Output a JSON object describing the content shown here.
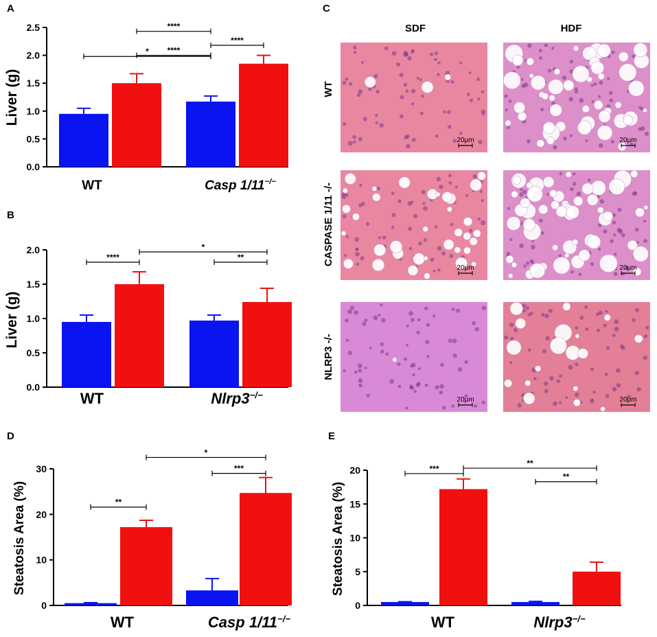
{
  "colors": {
    "sdf": "#0a14f0",
    "hdf": "#f01010",
    "tissue": "#e8829e",
    "vacuole": "#ffffff",
    "nucleus": "#7a3a8a"
  },
  "panels": {
    "A": "A",
    "B": "B",
    "C": "C",
    "D": "D",
    "E": "E"
  },
  "chart_data": [
    {
      "id": "A",
      "type": "bar",
      "ylabel": "Liver (g)",
      "ylim": [
        0,
        2.5
      ],
      "yticks": [
        "0.0",
        "0.5",
        "1.0",
        "1.5",
        "2.0",
        "2.5"
      ],
      "groups": [
        {
          "label": "WT",
          "italic": false,
          "values": [
            0.95,
            1.5
          ],
          "errors": [
            0.1,
            0.17
          ]
        },
        {
          "label_main": "Casp 1/11",
          "label_sup": "−/−",
          "italic": true,
          "values": [
            1.17,
            1.85
          ],
          "errors": [
            0.1,
            0.15
          ]
        }
      ],
      "series": [
        "SDF",
        "HDF"
      ],
      "significance": [
        {
          "from": [
            1,
            0
          ],
          "to": [
            0,
            1
          ],
          "level": 2.0,
          "label": "****"
        },
        {
          "from": [
            0,
            0
          ],
          "to": [
            1,
            0
          ],
          "level": 1.98,
          "label": "*"
        },
        {
          "from": [
            1,
            0
          ],
          "to": [
            1,
            1
          ],
          "level": 2.18,
          "label": "****"
        },
        {
          "from": [
            0,
            1
          ],
          "to": [
            1,
            0
          ],
          "level": 2.43,
          "label": "****"
        }
      ]
    },
    {
      "id": "B",
      "type": "bar",
      "ylabel": "Liver (g)",
      "ylim": [
        0,
        2.0
      ],
      "yticks": [
        "0.0",
        "0.5",
        "1.0",
        "1.5",
        "2.0"
      ],
      "groups": [
        {
          "label": "WT",
          "italic": false,
          "values": [
            0.95,
            1.5
          ],
          "errors": [
            0.1,
            0.18
          ]
        },
        {
          "label_main": "Nlrp3",
          "label_sup": "−/−",
          "italic": true,
          "values": [
            0.97,
            1.24
          ],
          "errors": [
            0.08,
            0.2
          ]
        }
      ],
      "series": [
        "SDF",
        "HDF"
      ],
      "significance": [
        {
          "from": [
            0,
            0
          ],
          "to": [
            0,
            1
          ],
          "level": 1.82,
          "label": "****"
        },
        {
          "from": [
            1,
            0
          ],
          "to": [
            1,
            1
          ],
          "level": 1.82,
          "label": "**"
        },
        {
          "from": [
            0,
            1
          ],
          "to": [
            1,
            1
          ],
          "level": 1.97,
          "label": "*"
        }
      ]
    },
    {
      "id": "D",
      "type": "bar",
      "ylabel": "Steatosis Area (%)",
      "ylim": [
        0,
        30
      ],
      "yticks": [
        "0",
        "10",
        "20",
        "30"
      ],
      "groups": [
        {
          "label": "WT",
          "italic": false,
          "values": [
            0.5,
            17.2
          ],
          "errors": [
            0.1,
            1.5
          ]
        },
        {
          "label_main": "Casp 1/11",
          "label_sup": "−/−",
          "italic": true,
          "values": [
            3.3,
            24.7
          ],
          "errors": [
            2.6,
            3.4
          ]
        }
      ],
      "series": [
        "SDF",
        "HDF"
      ],
      "significance": [
        {
          "from": [
            0,
            0
          ],
          "to": [
            0,
            1
          ],
          "level": 21.6,
          "label": "**"
        },
        {
          "from": [
            1,
            0
          ],
          "to": [
            1,
            1
          ],
          "level": 29.0,
          "label": "***"
        },
        {
          "from": [
            0,
            1
          ],
          "to": [
            1,
            1
          ],
          "level": 32.5,
          "label": "*"
        }
      ]
    },
    {
      "id": "E",
      "type": "bar",
      "ylabel": "Steatosis Area (%)",
      "ylim": [
        0,
        20
      ],
      "yticks": [
        "0",
        "5",
        "10",
        "15",
        "20"
      ],
      "groups": [
        {
          "label": "WT",
          "italic": false,
          "values": [
            0.5,
            17.2
          ],
          "errors": [
            0.05,
            1.5
          ]
        },
        {
          "label_main": "Nlrp3",
          "label_sup": "−/−",
          "italic": true,
          "values": [
            0.5,
            5.0
          ],
          "errors": [
            0.1,
            1.4
          ]
        }
      ],
      "series": [
        "SDF",
        "HDF"
      ],
      "significance": [
        {
          "from": [
            0,
            0
          ],
          "to": [
            0,
            1
          ],
          "level": 19.5,
          "label": "***"
        },
        {
          "from": [
            1,
            0
          ],
          "to": [
            1,
            1
          ],
          "level": 18.3,
          "label": "**"
        },
        {
          "from": [
            0,
            1
          ],
          "to": [
            1,
            1
          ],
          "level": 20.3,
          "label": "**"
        }
      ]
    }
  ],
  "histology": {
    "columns": [
      "SDF",
      "HDF"
    ],
    "rows": [
      "WT",
      "CASPASE 1/11 -/-",
      "NLRP3 -/-"
    ],
    "scale_bar": "20μm",
    "vacuole_density": [
      [
        0.05,
        0.85
      ],
      [
        0.6,
        0.95
      ],
      [
        0.02,
        0.3
      ]
    ]
  }
}
